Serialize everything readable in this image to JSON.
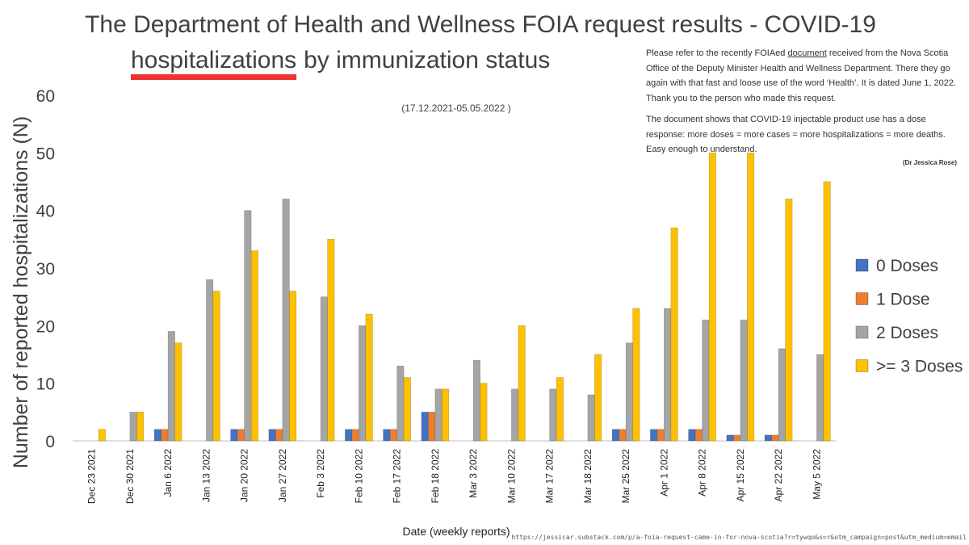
{
  "chart_data": {
    "type": "bar",
    "title": [
      "The Department of Health and Wellness FOIA request results - COVID-19",
      "hospitalizations",
      "by immunization status"
    ],
    "subtitle": "(17.12.2021-05.05.2022 )",
    "note": {
      "paragraphs": [
        [
          "Please refer to the recently FOIAed ",
          "document",
          " received from the Nova Scotia Office of the Deputy Minister Health and Wellness Department. There they go again with that fast and loose use of the word ‘Health’. It is dated June 1, 2022. Thank you to the person who made this request."
        ],
        [
          "The document shows that COVID-19 injectable product use has a dose response: more doses = more cases = more hospitalizations = more deaths. Easy enough to understand."
        ]
      ],
      "author": "(Dr Jessica Rose)"
    },
    "source": "https://jessicar.substack.com/p/a-foia-request-came-in-for-nova-scotia?r=tywqo&s=r&utm_campaign=post&utm_medium=email",
    "y_label": "Number of reported hospitalizations (N)",
    "x_label": "Date (weekly reports)",
    "categories": [
      "Dec 23 2021",
      "Dec 30 2021",
      "Jan 6 2022",
      "Jan 13 2022",
      "Jan 20 2022",
      "Jan 27 2022",
      "Feb 3 2022",
      "Feb 10 2022",
      "Feb 17 2022",
      "Feb 18 2022",
      "Mar 3 2022",
      "Mar 10 2022",
      "Mar 17 2022",
      "Mar 18 2022",
      "Mar 25 2022",
      "Apr 1 2022",
      "Apr 8 2022",
      "Apr 15 2022",
      "Apr 22 2022",
      "May 5 2022"
    ],
    "series": [
      {
        "name": "0 Doses",
        "color": "#4472c4",
        "values": [
          0,
          0,
          2,
          0,
          2,
          2,
          0,
          2,
          2,
          5,
          0,
          0,
          0,
          0,
          2,
          2,
          2,
          1,
          1,
          0
        ]
      },
      {
        "name": "1 Dose",
        "color": "#ed7d31",
        "values": [
          0,
          0,
          2,
          0,
          2,
          2,
          0,
          2,
          2,
          5,
          0,
          0,
          0,
          0,
          2,
          2,
          2,
          1,
          1,
          0
        ]
      },
      {
        "name": "2 Doses",
        "color": "#a5a5a5",
        "values": [
          0,
          5,
          19,
          28,
          40,
          42,
          25,
          20,
          13,
          9,
          14,
          9,
          9,
          8,
          17,
          23,
          21,
          21,
          16,
          15
        ]
      },
      {
        "name": ">= 3 Doses",
        "color": "#ffc000",
        "values": [
          2,
          5,
          17,
          26,
          33,
          26,
          35,
          22,
          11,
          9,
          10,
          20,
          11,
          15,
          23,
          37,
          50,
          50,
          42,
          45
        ]
      }
    ],
    "ylim": [
      0,
      60
    ],
    "yticks": [
      0,
      10,
      20,
      30,
      40,
      50,
      60
    ],
    "grid": false,
    "legend": "right"
  }
}
